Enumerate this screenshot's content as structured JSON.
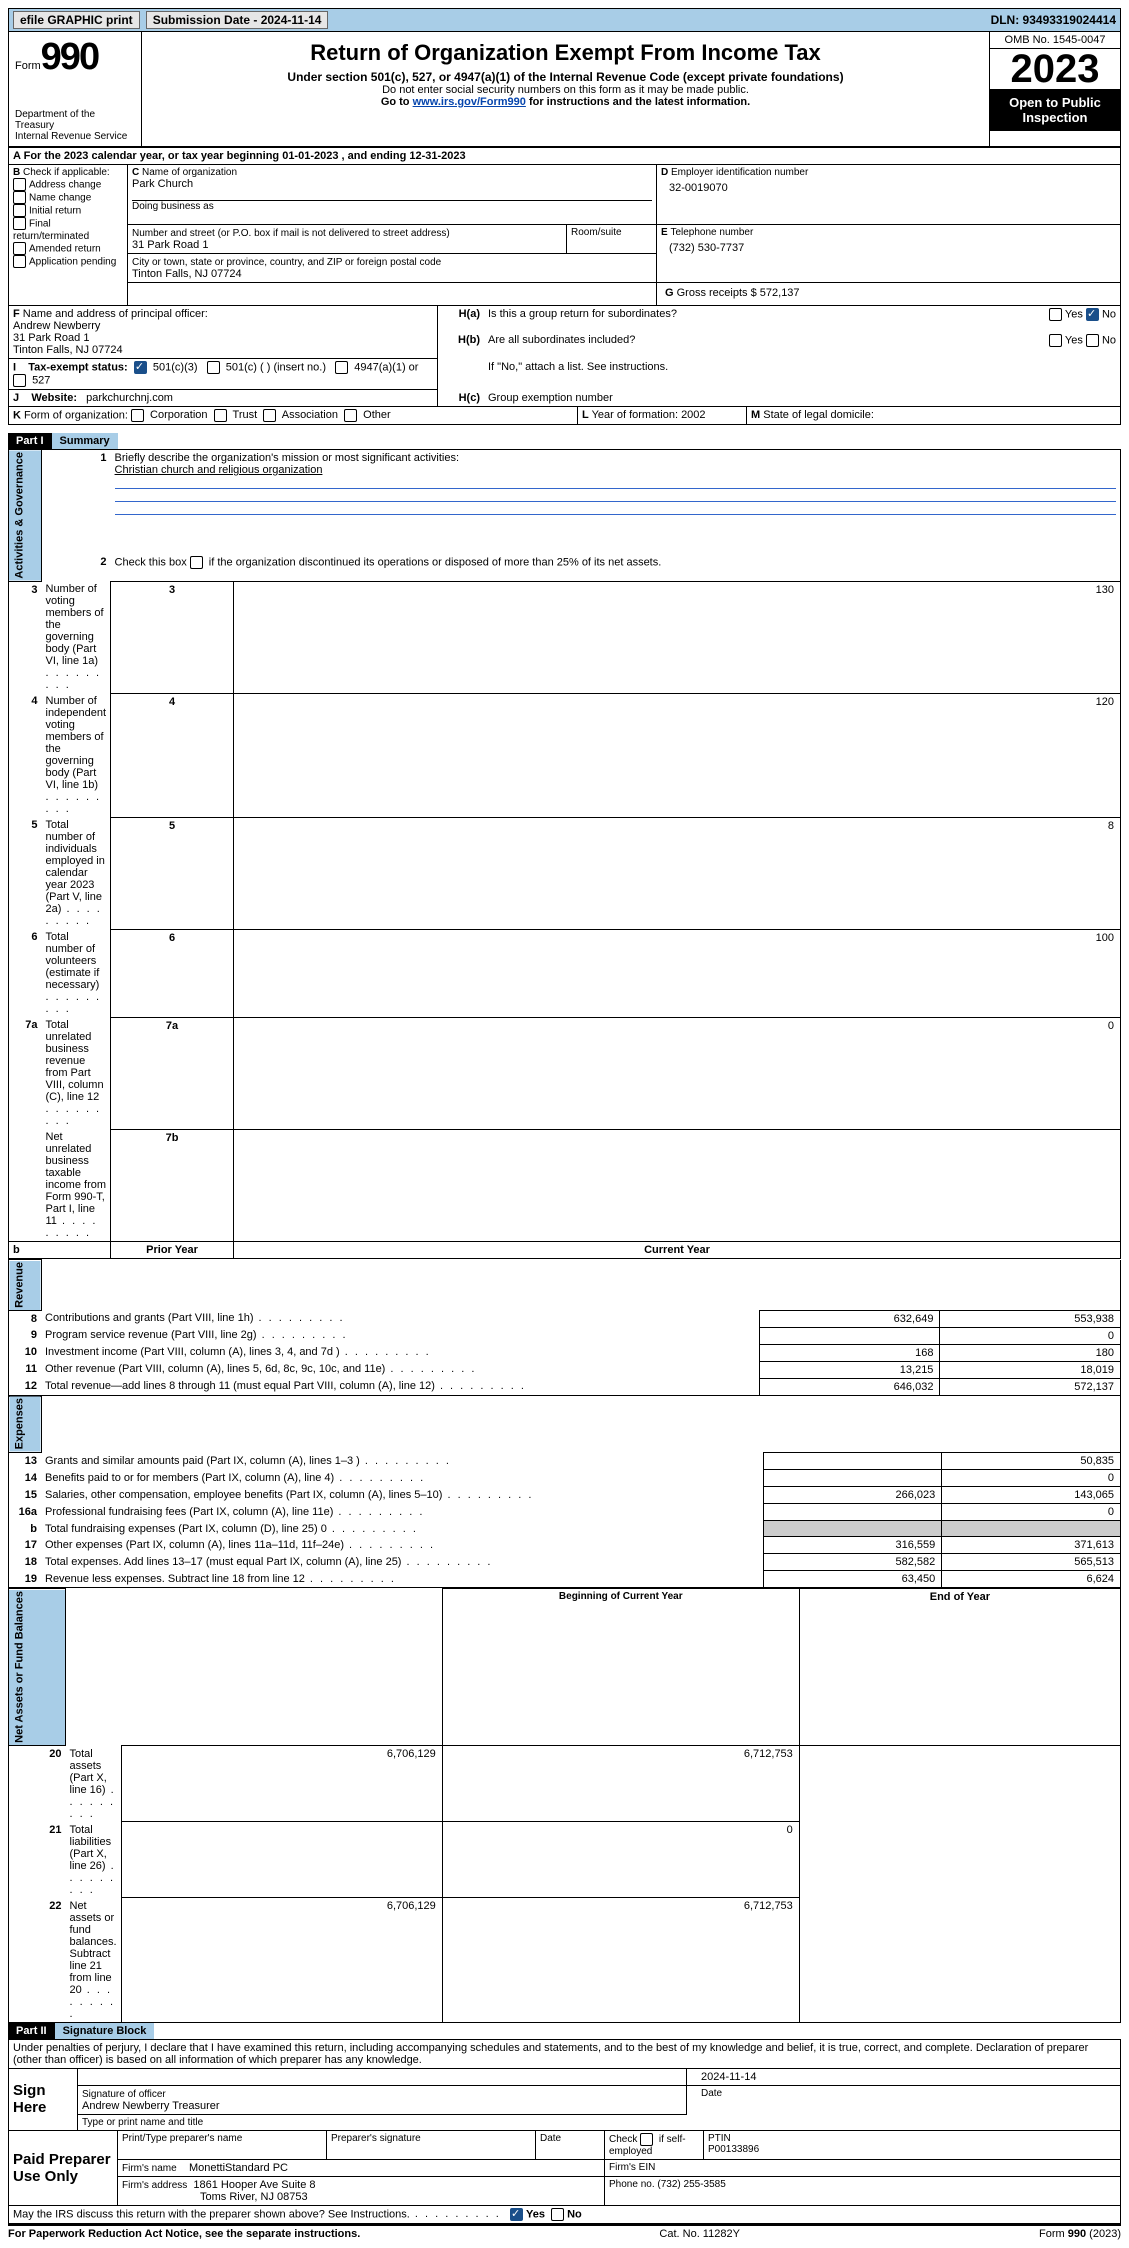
{
  "topbar": {
    "efile": "efile GRAPHIC print",
    "submission": "Submission Date - 2024-11-14",
    "dln": "DLN: 93493319024414"
  },
  "hdr": {
    "form_word": "Form",
    "form_no": "990",
    "dept": "Department of the Treasury",
    "irs": "Internal Revenue Service",
    "title": "Return of Organization Exempt From Income Tax",
    "sub1": "Under section 501(c), 527, or 4947(a)(1) of the Internal Revenue Code (except private foundations)",
    "sub2": "Do not enter social security numbers on this form as it may be made public.",
    "sub3a": "Go to ",
    "sub3link": "www.irs.gov/Form990",
    "sub3b": " for instructions and the latest information.",
    "omb": "OMB No. 1545-0047",
    "year": "2023",
    "otp": "Open to Public Inspection"
  },
  "A": {
    "text": "For the 2023 calendar year, or tax year beginning 01-01-2023    , and ending 12-31-2023"
  },
  "B": {
    "hdr": "Check if applicable:",
    "items": [
      "Address change",
      "Name change",
      "Initial return",
      "Final return/terminated",
      "Amended return",
      "Application pending"
    ]
  },
  "C": {
    "lbl": "Name of organization",
    "name": "Park Church",
    "dba": "Doing business as",
    "addr_lbl": "Number and street (or P.O. box if mail is not delivered to street address)",
    "room": "Room/suite",
    "addr": "31 Park Road 1",
    "city_lbl": "City or town, state or province, country, and ZIP or foreign postal code",
    "city": "Tinton Falls, NJ  07724"
  },
  "D": {
    "lbl": "Employer identification number",
    "val": "32-0019070"
  },
  "E": {
    "lbl": "Telephone number",
    "val": "(732) 530-7737"
  },
  "G": {
    "lbl": "Gross receipts $",
    "val": "572,137"
  },
  "F": {
    "lbl": "Name and address of principal officer:",
    "name": "Andrew Newberry",
    "addr1": "31 Park Road 1",
    "addr2": "Tinton Falls, NJ  07724"
  },
  "H": {
    "a": "Is this a group return for subordinates?",
    "b": "Are all subordinates included?",
    "note": "If \"No,\" attach a list. See instructions.",
    "c": "Group exemption number",
    "yes": "Yes",
    "no": "No"
  },
  "I": {
    "lbl": "Tax-exempt status:",
    "o1": "501(c)(3)",
    "o2": "501(c) (  ) (insert no.)",
    "o3": "4947(a)(1) or",
    "o4": "527"
  },
  "J": {
    "lbl": "Website:",
    "val": "parkchurchnj.com"
  },
  "K": {
    "lbl": "Form of organization:",
    "opts": [
      "Corporation",
      "Trust",
      "Association",
      "Other"
    ]
  },
  "L": {
    "lbl": "Year of formation:",
    "val": "2002"
  },
  "M": {
    "lbl": "State of legal domicile:"
  },
  "part1": {
    "hdr": "Part I",
    "title": "Summary",
    "l1": {
      "lbl": "Briefly describe the organization's mission or most significant activities:",
      "val": "Christian church and religious organization"
    },
    "l2": "Check this box   if the organization discontinued its operations or disposed of more than 25% of its net assets.",
    "gov": "Activities & Governance",
    "rev": "Revenue",
    "exp": "Expenses",
    "net": "Net Assets or Fund Balances",
    "rows_gov": [
      {
        "n": "3",
        "d": "Number of voting members of the governing body (Part VI, line 1a)",
        "i": "3",
        "v": "130"
      },
      {
        "n": "4",
        "d": "Number of independent voting members of the governing body (Part VI, line 1b)",
        "i": "4",
        "v": "120"
      },
      {
        "n": "5",
        "d": "Total number of individuals employed in calendar year 2023 (Part V, line 2a)",
        "i": "5",
        "v": "8"
      },
      {
        "n": "6",
        "d": "Total number of volunteers (estimate if necessary)",
        "i": "6",
        "v": "100"
      },
      {
        "n": "7a",
        "d": "Total unrelated business revenue from Part VIII, column (C), line 12",
        "i": "7a",
        "v": "0"
      },
      {
        "n": "",
        "d": "Net unrelated business taxable income from Form 990-T, Part I, line 11",
        "i": "7b",
        "v": ""
      }
    ],
    "prior": "Prior Year",
    "current": "Current Year",
    "b": "b",
    "bocy": "Beginning of Current Year",
    "eoy": "End of Year",
    "rows_rev": [
      {
        "n": "8",
        "d": "Contributions and grants (Part VIII, line 1h)",
        "p": "632,649",
        "c": "553,938"
      },
      {
        "n": "9",
        "d": "Program service revenue (Part VIII, line 2g)",
        "p": "",
        "c": "0"
      },
      {
        "n": "10",
        "d": "Investment income (Part VIII, column (A), lines 3, 4, and 7d )",
        "p": "168",
        "c": "180"
      },
      {
        "n": "11",
        "d": "Other revenue (Part VIII, column (A), lines 5, 6d, 8c, 9c, 10c, and 11e)",
        "p": "13,215",
        "c": "18,019"
      },
      {
        "n": "12",
        "d": "Total revenue—add lines 8 through 11 (must equal Part VIII, column (A), line 12)",
        "p": "646,032",
        "c": "572,137"
      }
    ],
    "rows_exp": [
      {
        "n": "13",
        "d": "Grants and similar amounts paid (Part IX, column (A), lines 1–3 )",
        "p": "",
        "c": "50,835"
      },
      {
        "n": "14",
        "d": "Benefits paid to or for members (Part IX, column (A), line 4)",
        "p": "",
        "c": "0"
      },
      {
        "n": "15",
        "d": "Salaries, other compensation, employee benefits (Part IX, column (A), lines 5–10)",
        "p": "266,023",
        "c": "143,065"
      },
      {
        "n": "16a",
        "d": "Professional fundraising fees (Part IX, column (A), line 11e)",
        "p": "",
        "c": "0"
      },
      {
        "n": "b",
        "d": "Total fundraising expenses (Part IX, column (D), line 25) 0",
        "p": "GRAY",
        "c": "GRAY"
      },
      {
        "n": "17",
        "d": "Other expenses (Part IX, column (A), lines 11a–11d, 11f–24e)",
        "p": "316,559",
        "c": "371,613"
      },
      {
        "n": "18",
        "d": "Total expenses. Add lines 13–17 (must equal Part IX, column (A), line 25)",
        "p": "582,582",
        "c": "565,513"
      },
      {
        "n": "19",
        "d": "Revenue less expenses. Subtract line 18 from line 12",
        "p": "63,450",
        "c": "6,624"
      }
    ],
    "rows_net": [
      {
        "n": "20",
        "d": "Total assets (Part X, line 16)",
        "p": "6,706,129",
        "c": "6,712,753"
      },
      {
        "n": "21",
        "d": "Total liabilities (Part X, line 26)",
        "p": "",
        "c": "0"
      },
      {
        "n": "22",
        "d": "Net assets or fund balances. Subtract line 21 from line 20",
        "p": "6,706,129",
        "c": "6,712,753"
      }
    ]
  },
  "part2": {
    "hdr": "Part II",
    "title": "Signature Block",
    "decl": "Under penalties of perjury, I declare that I have examined this return, including accompanying schedules and statements, and to the best of my knowledge and belief, it is true, correct, and complete. Declaration of preparer (other than officer) is based on all information of which preparer has any knowledge."
  },
  "sign": {
    "here": "Sign Here",
    "sig": "Signature of officer",
    "name": "Andrew Newberry Treasurer",
    "type": "Type or print name and title",
    "date_lbl": "Date",
    "date": "2024-11-14"
  },
  "paid": {
    "hdr": "Paid Preparer Use Only",
    "pname": "Print/Type preparer's name",
    "psig": "Preparer's signature",
    "date": "Date",
    "check": "Check   if self-employed",
    "ptin_lbl": "PTIN",
    "ptin": "P00133896",
    "firm_lbl": "Firm's name",
    "firm": "MonettiStandard PC",
    "fein": "Firm's EIN",
    "addr_lbl": "Firm's address",
    "addr1": "1861 Hooper Ave Suite 8",
    "addr2": "Toms River, NJ  08753",
    "phone_lbl": "Phone no.",
    "phone": "(732) 255-3585"
  },
  "discuss": "May the IRS discuss this return with the preparer shown above? See Instructions.",
  "foot": {
    "l": "For Paperwork Reduction Act Notice, see the separate instructions.",
    "c": "Cat. No. 11282Y",
    "r": "Form 990 (2023)"
  }
}
